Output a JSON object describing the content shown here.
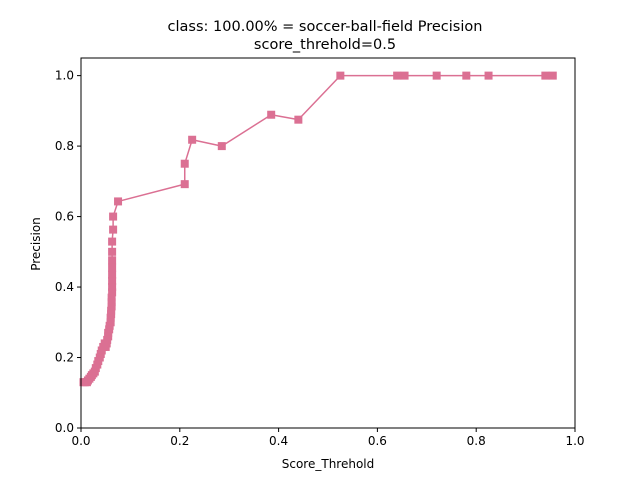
{
  "chart_data": {
    "type": "line",
    "title": "class: 100.00% = soccer-ball-field Precision",
    "subtitle": "score_threhold=0.5",
    "xlabel": "Score_Threhold",
    "ylabel": "Precision",
    "xlim": [
      0.0,
      1.0
    ],
    "ylim": [
      0.0,
      1.05
    ],
    "xticks": [
      "0.0",
      "0.2",
      "0.4",
      "0.6",
      "0.8",
      "1.0"
    ],
    "yticks": [
      "0.0",
      "0.2",
      "0.4",
      "0.6",
      "0.8",
      "1.0"
    ],
    "grid": false,
    "legend": "none",
    "marker": "square",
    "color": "#DB7093",
    "series": [
      {
        "x": [
          0.955,
          0.94,
          0.825,
          0.78,
          0.72,
          0.655,
          0.64,
          0.525,
          0.44,
          0.385,
          0.285,
          0.225,
          0.21,
          0.21,
          0.075,
          0.065,
          0.065,
          0.063,
          0.063,
          0.063,
          0.063,
          0.063,
          0.063,
          0.063,
          0.063,
          0.062,
          0.062,
          0.062,
          0.061,
          0.061,
          0.06,
          0.06,
          0.058,
          0.057,
          0.055,
          0.055,
          0.053,
          0.052,
          0.05,
          0.048,
          0.045,
          0.042,
          0.04,
          0.038,
          0.035,
          0.033,
          0.03,
          0.028,
          0.025,
          0.022,
          0.02,
          0.017,
          0.014,
          0.012,
          0.008,
          0.005
        ],
        "y": [
          1.0,
          1.0,
          1.0,
          1.0,
          1.0,
          1.0,
          1.0,
          1.0,
          0.875,
          0.889,
          0.8,
          0.818,
          0.75,
          0.692,
          0.643,
          0.6,
          0.563,
          0.529,
          0.5,
          0.476,
          0.455,
          0.435,
          0.417,
          0.4,
          0.385,
          0.37,
          0.357,
          0.345,
          0.333,
          0.323,
          0.313,
          0.3,
          0.29,
          0.28,
          0.27,
          0.26,
          0.25,
          0.24,
          0.23,
          0.24,
          0.23,
          0.22,
          0.21,
          0.2,
          0.19,
          0.18,
          0.17,
          0.16,
          0.155,
          0.15,
          0.145,
          0.14,
          0.135,
          0.13,
          0.13,
          0.13
        ]
      }
    ]
  }
}
